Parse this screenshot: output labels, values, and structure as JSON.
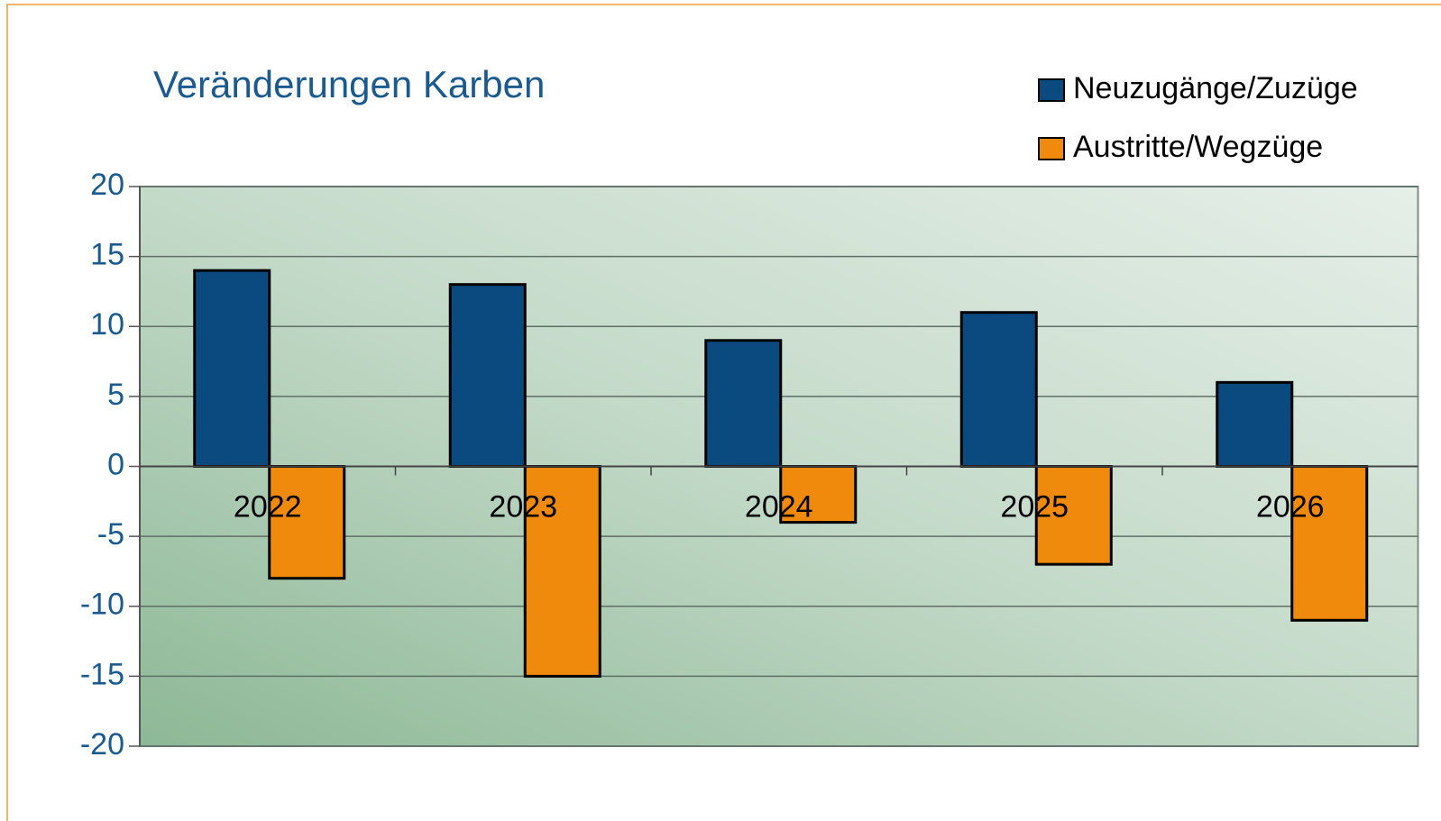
{
  "chart_data": {
    "type": "bar",
    "title": "Veränderungen Karben",
    "categories": [
      "2022",
      "2023",
      "2024",
      "2025",
      "2026"
    ],
    "series": [
      {
        "name": "Neuzugänge/Zuzüge",
        "color": "#0b4a7e",
        "values": [
          14,
          13,
          9,
          11,
          6
        ]
      },
      {
        "name": "Austritte/Wegzüge",
        "color": "#f08a0c",
        "values": [
          -8,
          -15,
          -4,
          -7,
          -11
        ]
      }
    ],
    "ylim": [
      -20,
      20
    ],
    "yticks": [
      -20,
      -15,
      -10,
      -5,
      0,
      5,
      10,
      15,
      20
    ],
    "grid": true,
    "legend": "top-right"
  }
}
